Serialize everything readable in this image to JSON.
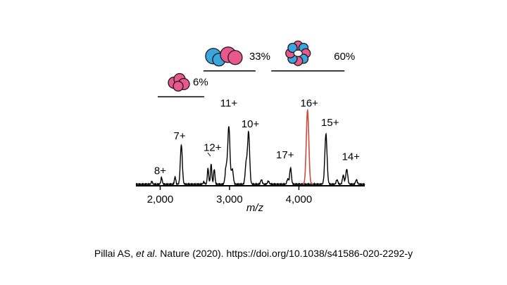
{
  "chart_data": {
    "type": "line",
    "title": "",
    "xlabel": "m/z",
    "ylabel": "",
    "xlim": [
      1650,
      4950
    ],
    "ylim": [
      0,
      100
    ],
    "xticks": [
      2000,
      3000,
      4000
    ],
    "xtick_labels": [
      "2,000",
      "3,000",
      "4,000"
    ],
    "series": [
      {
        "name": "spectrum",
        "color": "#000000",
        "peaks": [
          {
            "mz": 1880,
            "height": 4,
            "width": 8
          },
          {
            "mz": 2020,
            "height": 9,
            "width": 10
          },
          {
            "mz": 2215,
            "height": 10,
            "width": 10
          },
          {
            "mz": 2305,
            "height": 53,
            "width": 14
          },
          {
            "mz": 2630,
            "height": 3,
            "width": 10
          },
          {
            "mz": 2690,
            "height": 21,
            "width": 10
          },
          {
            "mz": 2735,
            "height": 27,
            "width": 10
          },
          {
            "mz": 2780,
            "height": 20,
            "width": 10
          },
          {
            "mz": 2950,
            "height": 22,
            "width": 14
          },
          {
            "mz": 2990,
            "height": 78,
            "width": 16
          },
          {
            "mz": 3040,
            "height": 20,
            "width": 14
          },
          {
            "mz": 3240,
            "height": 28,
            "width": 14
          },
          {
            "mz": 3275,
            "height": 70,
            "width": 15
          },
          {
            "mz": 3460,
            "height": 6,
            "width": 12
          },
          {
            "mz": 3560,
            "height": 4,
            "width": 12
          },
          {
            "mz": 3840,
            "height": 7,
            "width": 12
          },
          {
            "mz": 3880,
            "height": 22,
            "width": 12
          },
          {
            "mz": 4390,
            "height": 68,
            "width": 16
          },
          {
            "mz": 4550,
            "height": 6,
            "width": 12
          },
          {
            "mz": 4640,
            "height": 12,
            "width": 12
          },
          {
            "mz": 4690,
            "height": 20,
            "width": 14
          },
          {
            "mz": 4830,
            "height": 6,
            "width": 12
          }
        ]
      },
      {
        "name": "16+ peak",
        "color": "#d04a3c",
        "peaks": [
          {
            "mz": 4125,
            "height": 100,
            "width": 18
          }
        ]
      }
    ],
    "annotations": [
      {
        "label": "8+",
        "mz": 2000,
        "height": 15
      },
      {
        "label": "7+",
        "mz": 2280,
        "height": 62
      },
      {
        "label": "12+",
        "mz": 2755,
        "height": 46
      },
      {
        "label": "11+",
        "mz": 2990,
        "height": 106
      },
      {
        "label": "10+",
        "mz": 3300,
        "height": 78
      },
      {
        "label": "17+",
        "mz": 3800,
        "height": 36
      },
      {
        "label": "16+",
        "mz": 4150,
        "height": 106
      },
      {
        "label": "15+",
        "mz": 4450,
        "height": 80
      },
      {
        "label": "14+",
        "mz": 4750,
        "height": 34
      }
    ],
    "assemblies": [
      {
        "label": "6%",
        "subunits": 2,
        "mz": 2300,
        "height": 150
      },
      {
        "label": "33%",
        "subunits": 4,
        "mz": 3000,
        "height": 185
      },
      {
        "label": "60%",
        "subunits": 8,
        "mz": 4130,
        "height": 185
      }
    ],
    "colors": {
      "pink": "#e8588a",
      "blue": "#3aa6dd"
    }
  },
  "caption": {
    "text_plain": "Pillai AS, ",
    "text_italic": "et al",
    "text_rest": ".  Nature (2020). https://doi.org/10.1038/s41586-020-2292-y"
  }
}
